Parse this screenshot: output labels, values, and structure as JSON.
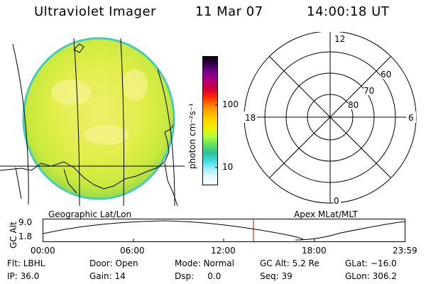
{
  "header": {
    "title": "Ultraviolet Imager",
    "date": "11 Mar 07",
    "time": "14:00:18 UT"
  },
  "colorbar": {
    "unit_label": "photon cm⁻²s⁻¹",
    "tick_labels": [
      "100",
      "10"
    ],
    "colors": [
      "#000000",
      "#3a0050",
      "#7a0090",
      "#b0007a",
      "#d0003c",
      "#ff2000",
      "#ff7a00",
      "#ffb000",
      "#ffd800",
      "#e8f000",
      "#b0ff40",
      "#60e060",
      "#30c0a0",
      "#40d8e0",
      "#a0eeff",
      "#e8f8ff",
      "#ffffff"
    ]
  },
  "polar": {
    "mlt_labels": {
      "top": "12",
      "left": "18",
      "right": "6",
      "bottom": "0"
    },
    "lat_labels": [
      "60",
      "70",
      "80"
    ]
  },
  "timeline": {
    "ylabel": "GC Alt",
    "y_ticks": [
      "9.0",
      "1.8"
    ],
    "left_caption": "Geographic Lat/Lon",
    "right_caption": "Apex MLat/MLT",
    "x_ticks": [
      "00:00",
      "06:00",
      "12:00",
      "18:00",
      "23:59"
    ],
    "current_marker_color": "#cc0000"
  },
  "info": {
    "row1": [
      {
        "label": "Flt:",
        "value": "LBHL"
      },
      {
        "label": "Door:",
        "value": "Open"
      },
      {
        "label": "Mode:",
        "value": "Normal"
      },
      {
        "label": "GC Alt:",
        "value": "5.2 Re"
      },
      {
        "label": "GLat:",
        "value": "−16.0"
      }
    ],
    "row2": [
      {
        "label": "IP:",
        "value": "36.0"
      },
      {
        "label": "Gain:",
        "value": "14"
      },
      {
        "label": "Dsp:",
        "value": "0.0"
      },
      {
        "label": "Seq:",
        "value": "39"
      },
      {
        "label": "GLon:",
        "value": "306.2"
      }
    ]
  }
}
